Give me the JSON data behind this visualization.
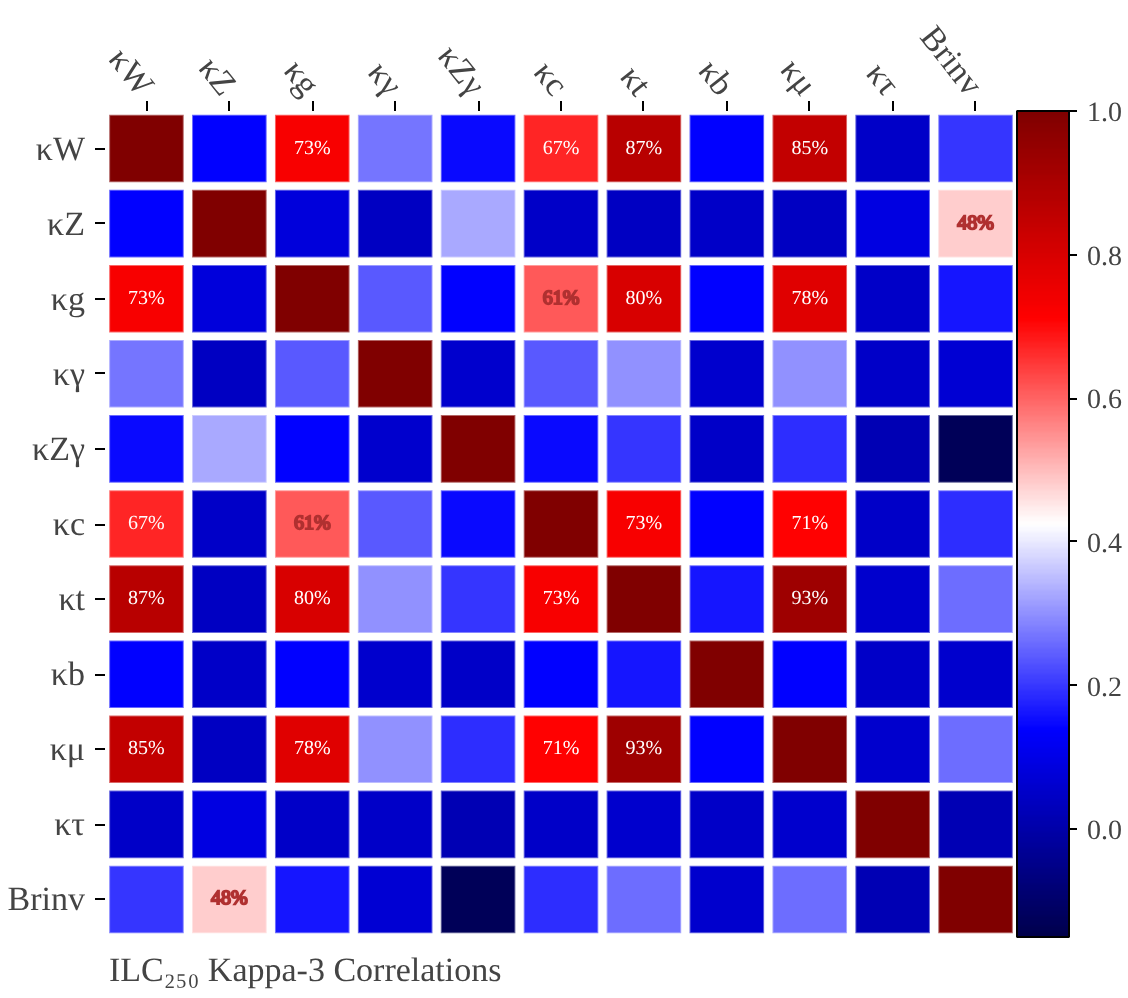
{
  "chart_data": {
    "type": "heatmap",
    "title": "ILC₂₅₀ Kappa-3 Correlations",
    "categories": [
      "κW",
      "κZ",
      "κg",
      "κγ",
      "κZγ",
      "κc",
      "κt",
      "κb",
      "κμ",
      "κτ",
      "Brinv"
    ],
    "y_categories": [
      "κW",
      "κZ",
      "κg",
      "κγ",
      "κZγ",
      "κc",
      "κt",
      "κb",
      "κμ",
      "κτ",
      "Brinv"
    ],
    "cells": [
      [
        1.0,
        0.14,
        0.73,
        0.27,
        0.15,
        0.67,
        0.87,
        0.14,
        0.85,
        0.05,
        0.2
      ],
      [
        0.14,
        1.0,
        0.08,
        0.04,
        0.33,
        0.05,
        0.04,
        0.05,
        0.04,
        0.09,
        0.48
      ],
      [
        0.73,
        0.08,
        1.0,
        0.24,
        0.14,
        0.61,
        0.8,
        0.14,
        0.78,
        0.05,
        0.16
      ],
      [
        0.27,
        0.04,
        0.24,
        1.0,
        0.06,
        0.24,
        0.3,
        0.06,
        0.3,
        0.05,
        0.07
      ],
      [
        0.15,
        0.33,
        0.14,
        0.06,
        1.0,
        0.15,
        0.2,
        0.05,
        0.19,
        0.02,
        -0.13
      ],
      [
        0.67,
        0.05,
        0.61,
        0.24,
        0.15,
        1.0,
        0.73,
        0.14,
        0.71,
        0.05,
        0.19
      ],
      [
        0.87,
        0.04,
        0.8,
        0.3,
        0.2,
        0.73,
        1.0,
        0.16,
        0.93,
        0.06,
        0.26
      ],
      [
        0.14,
        0.05,
        0.14,
        0.06,
        0.05,
        0.14,
        0.16,
        1.0,
        0.14,
        0.05,
        0.06
      ],
      [
        0.85,
        0.04,
        0.78,
        0.3,
        0.19,
        0.71,
        0.93,
        0.14,
        1.0,
        0.06,
        0.26
      ],
      [
        0.05,
        0.09,
        0.05,
        0.05,
        0.02,
        0.05,
        0.06,
        0.05,
        0.06,
        1.0,
        0.02
      ],
      [
        0.2,
        0.48,
        0.16,
        0.07,
        -0.13,
        0.19,
        0.26,
        0.06,
        0.26,
        0.02,
        1.0
      ]
    ],
    "cell_labels": [
      [
        null,
        null,
        "73%",
        null,
        null,
        "67%",
        "87%",
        null,
        "85%",
        null,
        null
      ],
      [
        null,
        null,
        null,
        null,
        null,
        null,
        null,
        null,
        null,
        null,
        "48%"
      ],
      [
        "73%",
        null,
        null,
        null,
        null,
        "61%",
        "80%",
        null,
        "78%",
        null,
        null
      ],
      [
        null,
        null,
        null,
        null,
        null,
        null,
        null,
        null,
        null,
        null,
        null
      ],
      [
        null,
        null,
        null,
        null,
        null,
        null,
        null,
        null,
        null,
        null,
        null
      ],
      [
        "67%",
        null,
        "61%",
        null,
        null,
        null,
        "73%",
        null,
        "71%",
        null,
        null
      ],
      [
        "87%",
        null,
        "80%",
        null,
        null,
        "73%",
        null,
        null,
        "93%",
        null,
        null
      ],
      [
        null,
        null,
        null,
        null,
        null,
        null,
        null,
        null,
        null,
        null,
        null
      ],
      [
        "85%",
        null,
        "78%",
        null,
        null,
        "71%",
        "93%",
        null,
        null,
        null,
        null
      ],
      [
        null,
        null,
        null,
        null,
        null,
        null,
        null,
        null,
        null,
        null,
        null
      ],
      [
        null,
        "48%",
        null,
        null,
        null,
        null,
        null,
        null,
        null,
        null,
        null
      ]
    ],
    "clim": [
      -0.15,
      1.0
    ],
    "cticks": [
      {
        "value": 0.0,
        "label": "0.0"
      },
      {
        "value": 0.2,
        "label": "0.2"
      },
      {
        "value": 0.4,
        "label": "0.4"
      },
      {
        "value": 0.6,
        "label": "0.6"
      },
      {
        "value": 0.8,
        "label": "0.8"
      },
      {
        "value": 1.0,
        "label": "1.0"
      }
    ]
  }
}
